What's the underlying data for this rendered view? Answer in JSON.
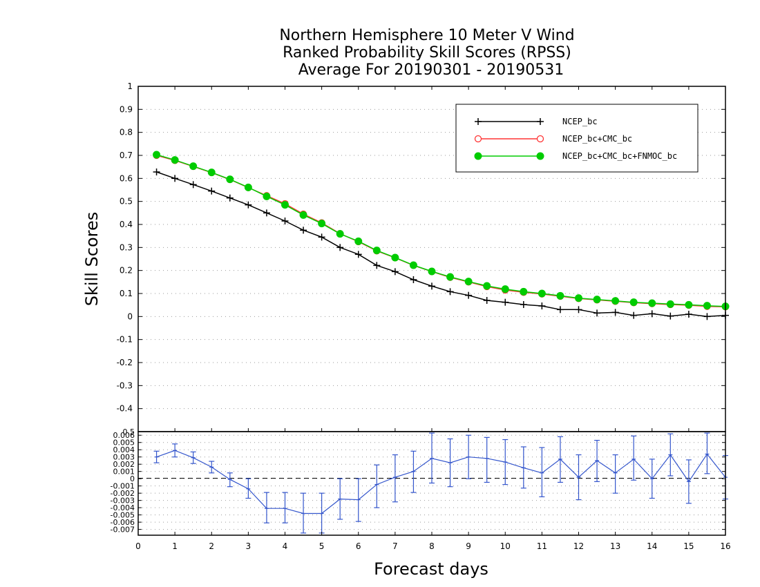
{
  "chart_data": [
    {
      "type": "line",
      "title_lines": [
        "Northern Hemisphere 10 Meter V Wind",
        "Ranked Probability Skill Scores (RPSS)",
        "Average For 20190301 - 20190531"
      ],
      "ylabel": "Skill Scores",
      "xlabel": "Forecast days",
      "xlim": [
        0,
        16
      ],
      "ylim": [
        -0.5,
        1
      ],
      "x_ticks": [
        "0",
        "1",
        "2",
        "3",
        "4",
        "5",
        "6",
        "7",
        "8",
        "9",
        "10",
        "11",
        "12",
        "13",
        "14",
        "15",
        "16"
      ],
      "y_ticks": [
        "1",
        "0.9",
        "0.8",
        "0.7",
        "0.6",
        "0.5",
        "0.4",
        "0.3",
        "0.2",
        "0.1",
        "0",
        "-0.1",
        "-0.2",
        "-0.3",
        "-0.4"
      ],
      "grid": true,
      "legend_position": "top-right",
      "x": [
        0.5,
        1,
        1.5,
        2,
        2.5,
        3,
        3.5,
        4,
        4.5,
        5,
        5.5,
        6,
        6.5,
        7,
        7.5,
        8,
        8.5,
        9,
        9.5,
        10,
        10.5,
        11,
        11.5,
        12,
        12.5,
        13,
        13.5,
        14,
        14.5,
        15,
        15.5,
        16
      ],
      "series": [
        {
          "name": "NCEP_bc",
          "color": "#000000",
          "marker": "plus",
          "values": [
            0.628,
            0.6,
            0.573,
            0.545,
            0.515,
            0.485,
            0.45,
            0.415,
            0.375,
            0.345,
            0.3,
            0.27,
            0.222,
            0.195,
            0.16,
            0.132,
            0.108,
            0.092,
            0.07,
            0.062,
            0.052,
            0.046,
            0.03,
            0.03,
            0.015,
            0.018,
            0.005,
            0.012,
            0.002,
            0.01,
            0.0,
            0.005
          ]
        },
        {
          "name": "NCEP_bc+CMC_bc",
          "color": "#ff3333",
          "marker": "open-circle",
          "values": [
            0.7,
            0.678,
            0.652,
            0.625,
            0.595,
            0.56,
            0.525,
            0.49,
            0.445,
            0.407,
            0.36,
            0.325,
            0.285,
            0.255,
            0.222,
            0.195,
            0.17,
            0.15,
            0.13,
            0.115,
            0.105,
            0.098,
            0.088,
            0.078,
            0.072,
            0.066,
            0.06,
            0.056,
            0.052,
            0.049,
            0.044,
            0.042
          ]
        },
        {
          "name": "NCEP_bc+CMC_bc+FNMOC_bc",
          "color": "#00cc00",
          "marker": "filled-circle",
          "values": [
            0.703,
            0.68,
            0.653,
            0.626,
            0.596,
            0.561,
            0.522,
            0.485,
            0.441,
            0.404,
            0.359,
            0.327,
            0.287,
            0.256,
            0.223,
            0.196,
            0.172,
            0.152,
            0.133,
            0.119,
            0.108,
            0.1,
            0.09,
            0.08,
            0.074,
            0.068,
            0.062,
            0.058,
            0.054,
            0.051,
            0.047,
            0.044
          ]
        }
      ]
    },
    {
      "type": "line",
      "xlim": [
        0,
        16
      ],
      "ylim": [
        -0.0078,
        0.0065
      ],
      "y_ticks": [
        "0.006",
        "0.005",
        "0.004",
        "0.003",
        "0.002",
        "0.001",
        "0",
        "-0.001",
        "-0.002",
        "-0.003",
        "-0.004",
        "-0.005",
        "-0.006",
        "-0.007"
      ],
      "top_tick_overlap": "0.5",
      "zero_line": "dashed",
      "series": [
        {
          "color": "#3355cc",
          "marker": "error-bar",
          "x": [
            0.5,
            1,
            1.5,
            2,
            2.5,
            3,
            3.5,
            4,
            4.5,
            5,
            5.5,
            6,
            6.5,
            7,
            7.5,
            8,
            8.5,
            9,
            9.5,
            10,
            10.5,
            11,
            11.5,
            12,
            12.5,
            13,
            13.5,
            14,
            14.5,
            15,
            15.5,
            16
          ],
          "values": [
            0.003,
            0.0039,
            0.0029,
            0.0016,
            -0.0001,
            -0.0014,
            -0.0041,
            -0.0041,
            -0.0048,
            -0.0048,
            -0.0028,
            -0.0029,
            -0.0008,
            0.0002,
            0.001,
            0.0028,
            0.0022,
            0.003,
            0.0028,
            0.0023,
            0.0015,
            0.0008,
            0.0027,
            0.0002,
            0.0025,
            0.0008,
            0.0027,
            0.0,
            0.0033,
            -0.0004,
            0.0034,
            0.0002
          ],
          "lower": [
            0.0022,
            0.003,
            0.0021,
            0.0008,
            -0.0011,
            -0.0027,
            -0.0061,
            -0.0061,
            -0.0075,
            -0.0075,
            -0.0056,
            -0.0059,
            -0.004,
            -0.0032,
            -0.0019,
            -0.0006,
            -0.0011,
            0.0,
            -0.0005,
            -0.0008,
            -0.0013,
            -0.0025,
            -0.0005,
            -0.0029,
            -0.0004,
            -0.002,
            -0.0002,
            -0.0027,
            0.0004,
            -0.0034,
            0.0007,
            -0.0028
          ],
          "upper": [
            0.0038,
            0.0048,
            0.0037,
            0.0024,
            0.0008,
            0.0,
            -0.0019,
            -0.0019,
            -0.002,
            -0.002,
            0.0,
            0.0,
            0.0019,
            0.0033,
            0.0038,
            0.0063,
            0.0055,
            0.006,
            0.0057,
            0.0054,
            0.0044,
            0.0043,
            0.0058,
            0.0033,
            0.0053,
            0.0033,
            0.0059,
            0.0027,
            0.0062,
            0.0026,
            0.0063,
            0.0032
          ]
        }
      ]
    }
  ]
}
